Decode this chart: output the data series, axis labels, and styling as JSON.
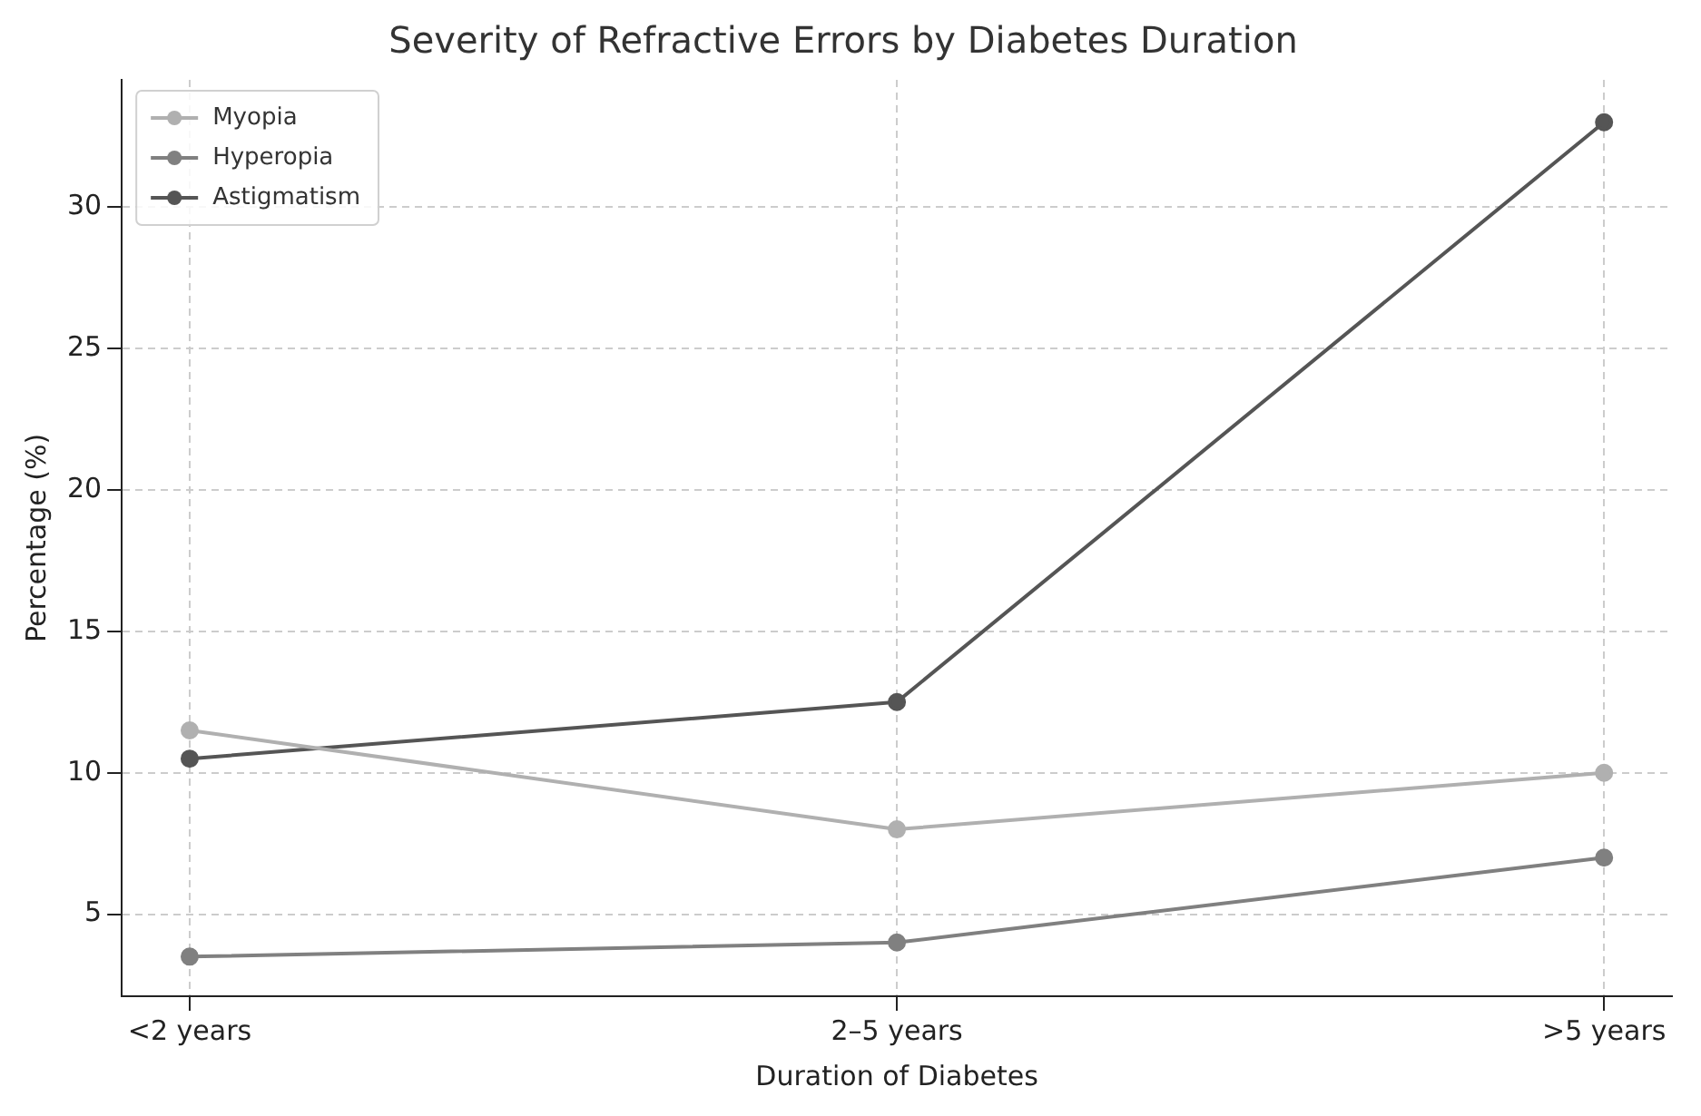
{
  "chart_data": {
    "type": "line",
    "title": "Severity of Refractive Errors by Diabetes Duration",
    "xlabel": "Duration of Diabetes",
    "ylabel": "Percentage (%)",
    "categories": [
      "<2 years",
      "2–5 years",
      ">5 years"
    ],
    "series": [
      {
        "name": "Myopia",
        "color": "#b0b0b0",
        "values": [
          11.5,
          8,
          10
        ]
      },
      {
        "name": "Hyperopia",
        "color": "#808080",
        "values": [
          3.5,
          4,
          7
        ]
      },
      {
        "name": "Astigmatism",
        "color": "#555555",
        "values": [
          10.5,
          12.5,
          33
        ]
      }
    ],
    "ylim": [
      2.1,
      34.5
    ],
    "yticks": [
      5,
      10,
      15,
      20,
      25,
      30
    ],
    "grid": true,
    "legend": "top left",
    "marker": "circle",
    "line_style": "solid"
  }
}
